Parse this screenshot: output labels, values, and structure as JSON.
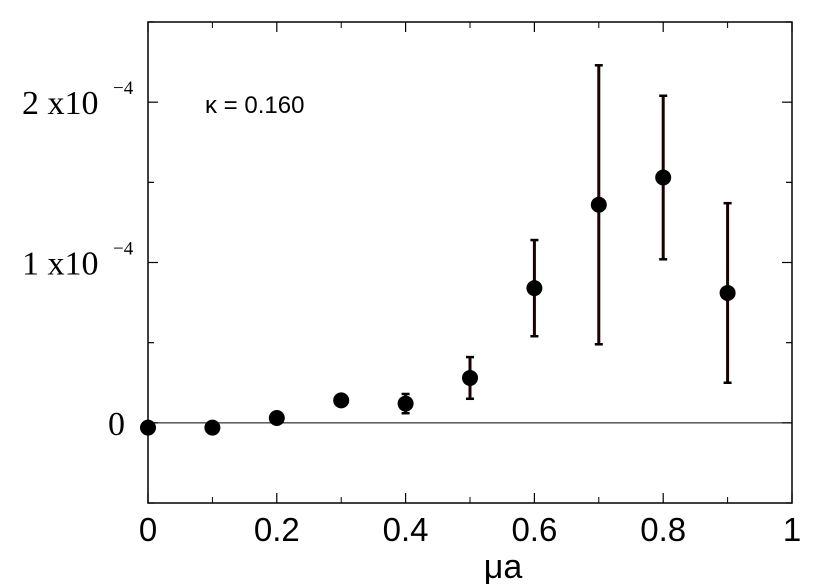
{
  "chart_data": {
    "type": "scatter",
    "title": "",
    "xlabel": "μa",
    "ylabel": "",
    "xlim": [
      0,
      1
    ],
    "ylim": [
      -5e-05,
      0.00025
    ],
    "grid": false,
    "annotation": "κ = 0.160",
    "x_ticks": [
      {
        "value": 0,
        "label": "0"
      },
      {
        "value": 0.2,
        "label": "0.2"
      },
      {
        "value": 0.4,
        "label": "0.4"
      },
      {
        "value": 0.6,
        "label": "0.6"
      },
      {
        "value": 0.8,
        "label": "0.8"
      },
      {
        "value": 1,
        "label": "1"
      }
    ],
    "y_ticks": [
      {
        "value": 0,
        "mantissa": "0",
        "exponent": ""
      },
      {
        "value": 0.0001,
        "mantissa": "1 x10",
        "exponent": "−4"
      },
      {
        "value": 0.0002,
        "mantissa": "2 x10",
        "exponent": "−4"
      }
    ],
    "reference_line_y": 0,
    "series": [
      {
        "points": [
          {
            "x": 0.0,
            "y": -3e-06,
            "err": 0
          },
          {
            "x": 0.1,
            "y": -3e-06,
            "err": 0
          },
          {
            "x": 0.2,
            "y": 3e-06,
            "err": 0
          },
          {
            "x": 0.3,
            "y": 1.4e-05,
            "err": 0
          },
          {
            "x": 0.4,
            "y": 1.2e-05,
            "err": 6e-06
          },
          {
            "x": 0.5,
            "y": 2.8e-05,
            "err": 1.3e-05
          },
          {
            "x": 0.6,
            "y": 8.4e-05,
            "err": 3e-05
          },
          {
            "x": 0.7,
            "y": 0.000136,
            "err": 8.7e-05
          },
          {
            "x": 0.8,
            "y": 0.000153,
            "err": 5.1e-05
          },
          {
            "x": 0.9,
            "y": 8.1e-05,
            "err": 5.6e-05
          }
        ]
      }
    ]
  }
}
